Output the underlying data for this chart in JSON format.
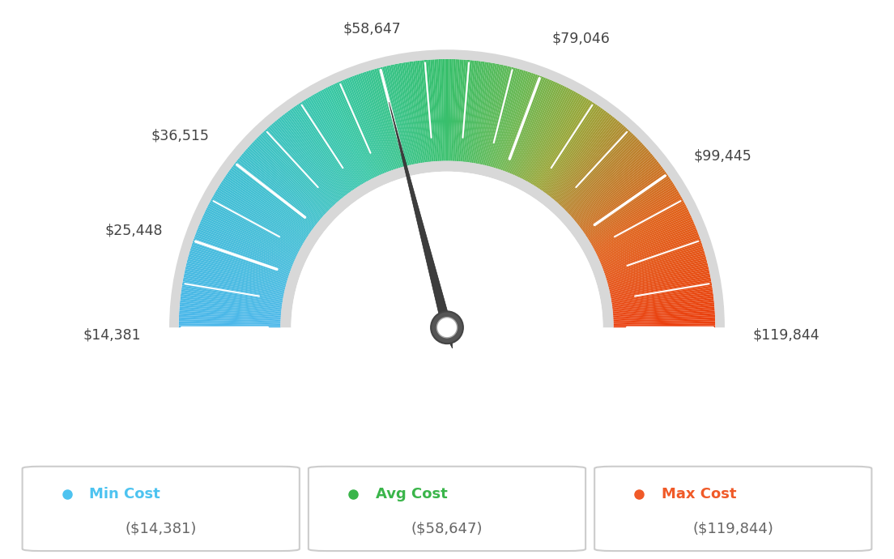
{
  "min_val": 14381,
  "max_val": 119844,
  "avg_val": 58647,
  "label_values": [
    14381,
    25448,
    36515,
    58647,
    79046,
    99445,
    119844
  ],
  "label_texts": [
    "$14,381",
    "$25,448",
    "$36,515",
    "$58,647",
    "$79,046",
    "$99,445",
    "$119,844"
  ],
  "legend": [
    {
      "label": "Min Cost",
      "value": "($14,381)",
      "color": "#4dc3f0"
    },
    {
      "label": "Avg Cost",
      "value": "($58,647)",
      "color": "#3ab54a"
    },
    {
      "label": "Max Cost",
      "value": "($119,844)",
      "color": "#f05a28"
    }
  ],
  "needle_value": 58647,
  "background_color": "#ffffff",
  "color_stops": [
    [
      0.0,
      [
        0.3,
        0.72,
        0.92
      ]
    ],
    [
      0.2,
      [
        0.25,
        0.75,
        0.82
      ]
    ],
    [
      0.35,
      [
        0.22,
        0.78,
        0.65
      ]
    ],
    [
      0.5,
      [
        0.22,
        0.75,
        0.42
      ]
    ],
    [
      0.6,
      [
        0.42,
        0.72,
        0.32
      ]
    ],
    [
      0.68,
      [
        0.6,
        0.65,
        0.22
      ]
    ],
    [
      0.75,
      [
        0.72,
        0.52,
        0.18
      ]
    ],
    [
      0.85,
      [
        0.88,
        0.38,
        0.1
      ]
    ],
    [
      1.0,
      [
        0.92,
        0.25,
        0.06
      ]
    ]
  ]
}
